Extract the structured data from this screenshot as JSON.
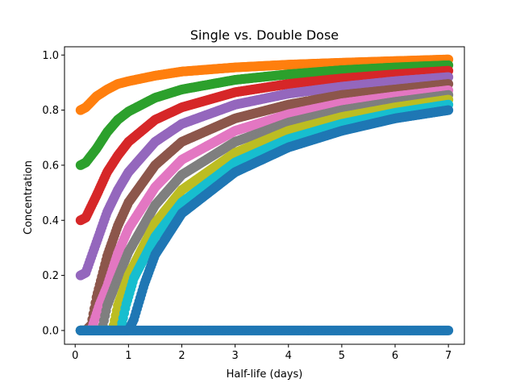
{
  "chart_data": {
    "type": "scatter",
    "title": "Single vs. Double Dose",
    "xlabel": "Half-life (days)",
    "ylabel": "Concentration",
    "xlim": [
      -0.2,
      7.3
    ],
    "ylim": [
      -0.05,
      1.03
    ],
    "xticks": [
      {
        "value": 0,
        "label": "0"
      },
      {
        "value": 1,
        "label": "1"
      },
      {
        "value": 2,
        "label": "2"
      },
      {
        "value": 3,
        "label": "3"
      },
      {
        "value": 4,
        "label": "4"
      },
      {
        "value": 5,
        "label": "5"
      },
      {
        "value": 6,
        "label": "6"
      },
      {
        "value": 7,
        "label": "7"
      }
    ],
    "yticks": [
      {
        "value": 0.0,
        "label": "0.0"
      },
      {
        "value": 0.2,
        "label": "0.2"
      },
      {
        "value": 0.4,
        "label": "0.4"
      },
      {
        "value": 0.6,
        "label": "0.6"
      },
      {
        "value": 0.8,
        "label": "0.8"
      },
      {
        "value": 1.0,
        "label": "1.0"
      }
    ],
    "grid": false,
    "legend": "none",
    "series": [
      {
        "color": "#ff7f0e",
        "points": [
          [
            0.1,
            0.8
          ],
          [
            0.2,
            0.81
          ],
          [
            0.4,
            0.85
          ],
          [
            0.6,
            0.875
          ],
          [
            0.8,
            0.895
          ],
          [
            1.0,
            0.905
          ],
          [
            1.5,
            0.925
          ],
          [
            2,
            0.94
          ],
          [
            3,
            0.955
          ],
          [
            4,
            0.965
          ],
          [
            5,
            0.972
          ],
          [
            6,
            0.978
          ],
          [
            7,
            0.984
          ]
        ]
      },
      {
        "color": "#2ca02c",
        "points": [
          [
            0.1,
            0.6
          ],
          [
            0.2,
            0.61
          ],
          [
            0.4,
            0.66
          ],
          [
            0.6,
            0.72
          ],
          [
            0.8,
            0.765
          ],
          [
            1.0,
            0.795
          ],
          [
            1.5,
            0.845
          ],
          [
            2,
            0.875
          ],
          [
            3,
            0.91
          ],
          [
            4,
            0.93
          ],
          [
            5,
            0.945
          ],
          [
            6,
            0.955
          ],
          [
            7,
            0.963
          ]
        ]
      },
      {
        "color": "#d62728",
        "points": [
          [
            0.1,
            0.4
          ],
          [
            0.2,
            0.41
          ],
          [
            0.4,
            0.49
          ],
          [
            0.6,
            0.575
          ],
          [
            0.8,
            0.635
          ],
          [
            1.0,
            0.685
          ],
          [
            1.5,
            0.765
          ],
          [
            2,
            0.81
          ],
          [
            3,
            0.865
          ],
          [
            4,
            0.895
          ],
          [
            5,
            0.915
          ],
          [
            6,
            0.93
          ],
          [
            7,
            0.943
          ]
        ]
      },
      {
        "color": "#9467bd",
        "points": [
          [
            0.1,
            0.2
          ],
          [
            0.2,
            0.21
          ],
          [
            0.4,
            0.32
          ],
          [
            0.6,
            0.43
          ],
          [
            0.8,
            0.51
          ],
          [
            1.0,
            0.575
          ],
          [
            1.5,
            0.685
          ],
          [
            2,
            0.75
          ],
          [
            3,
            0.82
          ],
          [
            4,
            0.86
          ],
          [
            5,
            0.885
          ],
          [
            6,
            0.905
          ],
          [
            7,
            0.92
          ]
        ]
      },
      {
        "color": "#8c564b",
        "points": [
          [
            0.1,
            0.0
          ],
          [
            0.2,
            0.0
          ],
          [
            0.3,
            0.02
          ],
          [
            0.4,
            0.12
          ],
          [
            0.6,
            0.27
          ],
          [
            0.8,
            0.38
          ],
          [
            1.0,
            0.465
          ],
          [
            1.5,
            0.6
          ],
          [
            2,
            0.685
          ],
          [
            3,
            0.77
          ],
          [
            4,
            0.82
          ],
          [
            5,
            0.855
          ],
          [
            6,
            0.875
          ],
          [
            7,
            0.895
          ]
        ]
      },
      {
        "color": "#e377c2",
        "points": [
          [
            0.1,
            0.0
          ],
          [
            0.3,
            0.0
          ],
          [
            0.45,
            0.09
          ],
          [
            0.6,
            0.16
          ],
          [
            0.8,
            0.28
          ],
          [
            1.0,
            0.37
          ],
          [
            1.5,
            0.52
          ],
          [
            2,
            0.62
          ],
          [
            3,
            0.725
          ],
          [
            4,
            0.785
          ],
          [
            5,
            0.825
          ],
          [
            6,
            0.85
          ],
          [
            7,
            0.872
          ]
        ]
      },
      {
        "color": "#7f7f7f",
        "points": [
          [
            0.1,
            0.0
          ],
          [
            0.5,
            0.0
          ],
          [
            0.6,
            0.09
          ],
          [
            0.8,
            0.19
          ],
          [
            1.0,
            0.285
          ],
          [
            1.5,
            0.455
          ],
          [
            2,
            0.565
          ],
          [
            3,
            0.685
          ],
          [
            4,
            0.755
          ],
          [
            5,
            0.8
          ],
          [
            6,
            0.83
          ],
          [
            7,
            0.855
          ]
        ]
      },
      {
        "color": "#bcbd22",
        "points": [
          [
            0.1,
            0.0
          ],
          [
            0.7,
            0.0
          ],
          [
            0.8,
            0.09
          ],
          [
            1.0,
            0.2
          ],
          [
            1.5,
            0.39
          ],
          [
            2,
            0.51
          ],
          [
            3,
            0.645
          ],
          [
            4,
            0.725
          ],
          [
            5,
            0.775
          ],
          [
            6,
            0.81
          ],
          [
            7,
            0.838
          ]
        ]
      },
      {
        "color": "#17becf",
        "points": [
          [
            0.1,
            0.0
          ],
          [
            0.85,
            0.0
          ],
          [
            0.95,
            0.09
          ],
          [
            1.1,
            0.19
          ],
          [
            1.5,
            0.34
          ],
          [
            2,
            0.465
          ],
          [
            3,
            0.61
          ],
          [
            4,
            0.695
          ],
          [
            5,
            0.75
          ],
          [
            6,
            0.79
          ],
          [
            7,
            0.82
          ]
        ]
      },
      {
        "color": "#1f77b4",
        "points": [
          [
            0.1,
            0.0
          ],
          [
            1.0,
            0.0
          ],
          [
            1.1,
            0.04
          ],
          [
            1.3,
            0.17
          ],
          [
            1.5,
            0.275
          ],
          [
            2,
            0.425
          ],
          [
            3,
            0.575
          ],
          [
            4,
            0.665
          ],
          [
            5,
            0.725
          ],
          [
            6,
            0.77
          ],
          [
            7,
            0.8
          ]
        ]
      },
      {
        "color": "#1f77b4",
        "points": [
          [
            0.1,
            0.0
          ],
          [
            7,
            0.0
          ]
        ]
      }
    ]
  }
}
